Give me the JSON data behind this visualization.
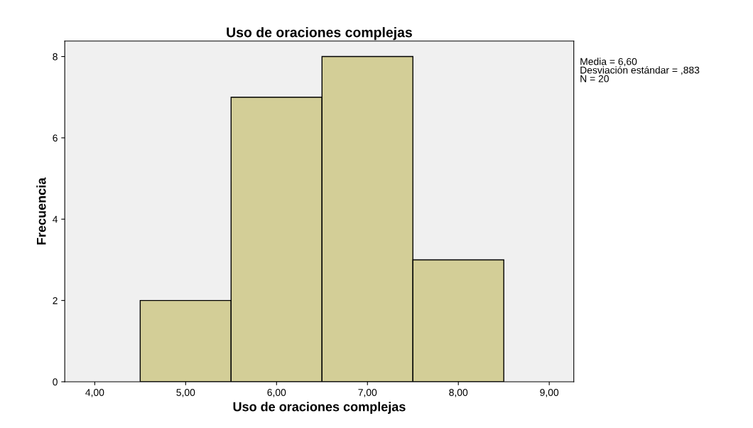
{
  "chart_data": {
    "type": "histogram",
    "title": "Uso de oraciones complejas",
    "xlabel": "Uso de oraciones complejas",
    "ylabel": "Frecuencia",
    "bins": [
      4.5,
      5.5,
      6.5,
      7.5,
      8.5
    ],
    "values": [
      2,
      7,
      8,
      3
    ],
    "color": "#d3ce97",
    "xlim": [
      3.67,
      9.27
    ],
    "xticks": [
      {
        "value": 4,
        "label": "4,00"
      },
      {
        "value": 5,
        "label": "5,00"
      },
      {
        "value": 6,
        "label": "6,00"
      },
      {
        "value": 7,
        "label": "7,00"
      },
      {
        "value": 8,
        "label": "8,00"
      },
      {
        "value": 9,
        "label": "9,00"
      }
    ],
    "ylim": [
      0,
      8.38
    ],
    "yticks": [
      0,
      2,
      4,
      6,
      8
    ],
    "grid": false,
    "annotations": [
      "Media = 6,60",
      "Desviación estándar = ,883",
      "N = 20"
    ]
  }
}
